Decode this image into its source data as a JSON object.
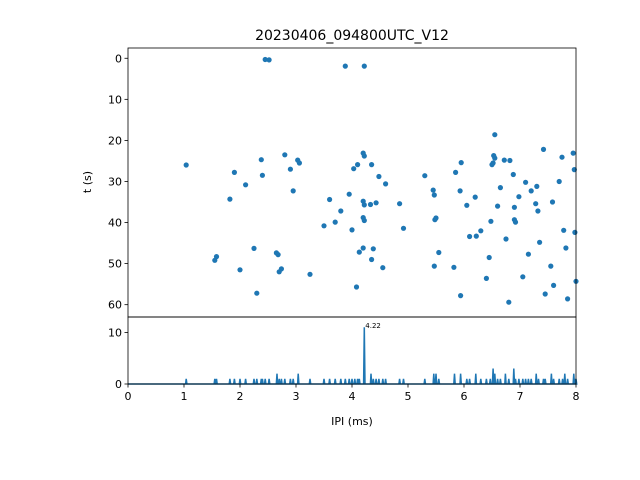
{
  "chart_data": [
    {
      "type": "scatter",
      "title": "20230406_094800UTC_V12",
      "ylabel": "t (s)",
      "xlim": [
        0,
        8
      ],
      "ylim": [
        63,
        -2.5
      ],
      "y_inverted": true,
      "grid": false,
      "marker_color": "#1f77b4",
      "yticks": [
        "0",
        "10",
        "20",
        "30",
        "40",
        "50",
        "60"
      ],
      "points": [
        [
          2.45,
          0.3
        ],
        [
          2.52,
          0.4
        ],
        [
          3.88,
          1.9
        ],
        [
          4.22,
          1.9
        ],
        [
          1.04,
          26.0
        ],
        [
          1.58,
          48.3
        ],
        [
          1.55,
          49.2
        ],
        [
          1.82,
          34.3
        ],
        [
          1.9,
          27.8
        ],
        [
          2.0,
          51.5
        ],
        [
          2.1,
          30.8
        ],
        [
          2.25,
          46.3
        ],
        [
          2.3,
          57.2
        ],
        [
          2.38,
          24.7
        ],
        [
          2.4,
          28.5
        ],
        [
          2.65,
          47.4
        ],
        [
          2.68,
          47.8
        ],
        [
          2.7,
          52.0
        ],
        [
          2.74,
          51.3
        ],
        [
          2.8,
          23.5
        ],
        [
          2.9,
          27.0
        ],
        [
          2.95,
          32.3
        ],
        [
          3.03,
          24.8
        ],
        [
          3.06,
          25.5
        ],
        [
          3.25,
          52.6
        ],
        [
          3.5,
          40.8
        ],
        [
          3.6,
          34.4
        ],
        [
          3.7,
          39.9
        ],
        [
          3.8,
          37.2
        ],
        [
          3.95,
          33.1
        ],
        [
          4.0,
          41.8
        ],
        [
          4.03,
          26.9
        ],
        [
          4.1,
          25.9
        ],
        [
          4.13,
          47.2
        ],
        [
          4.08,
          55.7
        ],
        [
          4.2,
          23.1
        ],
        [
          4.22,
          23.8
        ],
        [
          4.2,
          34.8
        ],
        [
          4.22,
          35.7
        ],
        [
          4.2,
          38.8
        ],
        [
          4.22,
          39.5
        ],
        [
          4.2,
          46.2
        ],
        [
          4.35,
          25.9
        ],
        [
          4.33,
          35.6
        ],
        [
          4.35,
          49.0
        ],
        [
          4.38,
          46.4
        ],
        [
          4.43,
          35.2
        ],
        [
          4.48,
          28.8
        ],
        [
          4.55,
          51.0
        ],
        [
          4.6,
          30.6
        ],
        [
          4.85,
          35.4
        ],
        [
          4.92,
          41.4
        ],
        [
          5.3,
          28.6
        ],
        [
          5.45,
          32.1
        ],
        [
          5.47,
          33.3
        ],
        [
          5.5,
          38.9
        ],
        [
          5.48,
          39.3
        ],
        [
          5.47,
          50.6
        ],
        [
          5.55,
          47.3
        ],
        [
          5.82,
          50.9
        ],
        [
          5.85,
          27.8
        ],
        [
          5.95,
          25.4
        ],
        [
          5.93,
          32.3
        ],
        [
          5.94,
          57.8
        ],
        [
          6.05,
          35.8
        ],
        [
          6.1,
          43.4
        ],
        [
          6.2,
          33.8
        ],
        [
          6.22,
          43.3
        ],
        [
          6.3,
          42.0
        ],
        [
          6.4,
          53.6
        ],
        [
          6.45,
          48.5
        ],
        [
          6.48,
          39.7
        ],
        [
          6.5,
          25.9
        ],
        [
          6.52,
          25.5
        ],
        [
          6.55,
          18.6
        ],
        [
          6.53,
          23.7
        ],
        [
          6.55,
          24.3
        ],
        [
          6.6,
          36.0
        ],
        [
          6.65,
          31.5
        ],
        [
          6.72,
          24.8
        ],
        [
          6.75,
          44.0
        ],
        [
          6.8,
          59.4
        ],
        [
          6.82,
          24.9
        ],
        [
          6.88,
          28.3
        ],
        [
          6.9,
          36.3
        ],
        [
          6.9,
          39.3
        ],
        [
          6.92,
          39.9
        ],
        [
          6.98,
          33.7
        ],
        [
          7.05,
          53.2
        ],
        [
          7.1,
          30.2
        ],
        [
          7.15,
          47.7
        ],
        [
          7.2,
          32.3
        ],
        [
          7.28,
          35.4
        ],
        [
          7.3,
          31.2
        ],
        [
          7.32,
          37.2
        ],
        [
          7.35,
          44.8
        ],
        [
          7.45,
          57.4
        ],
        [
          7.42,
          22.2
        ],
        [
          7.55,
          50.6
        ],
        [
          7.6,
          55.3
        ],
        [
          7.58,
          35.0
        ],
        [
          7.7,
          30.0
        ],
        [
          7.75,
          24.1
        ],
        [
          7.78,
          41.9
        ],
        [
          7.82,
          46.2
        ],
        [
          7.85,
          58.6
        ],
        [
          7.95,
          23.1
        ],
        [
          7.97,
          27.1
        ],
        [
          7.98,
          42.4
        ],
        [
          8.0,
          54.3
        ]
      ]
    },
    {
      "type": "line",
      "xlabel": "IPI (ms)",
      "xlim": [
        0,
        8
      ],
      "ylim": [
        0,
        13
      ],
      "grid": false,
      "line_color": "#1f77b4",
      "xticks": [
        "0",
        "1",
        "2",
        "3",
        "4",
        "5",
        "6",
        "7",
        "8"
      ],
      "yticks": [
        "0",
        "10"
      ],
      "annotation": "4.22",
      "peak": [
        4.22,
        11.0
      ],
      "spikes": [
        [
          1.04,
          1
        ],
        [
          1.55,
          1
        ],
        [
          1.58,
          1
        ],
        [
          1.82,
          1
        ],
        [
          1.9,
          1
        ],
        [
          2.0,
          1
        ],
        [
          2.1,
          1
        ],
        [
          2.25,
          1
        ],
        [
          2.3,
          1
        ],
        [
          2.38,
          1
        ],
        [
          2.4,
          1
        ],
        [
          2.45,
          1
        ],
        [
          2.52,
          1
        ],
        [
          2.66,
          2
        ],
        [
          2.7,
          1
        ],
        [
          2.74,
          1
        ],
        [
          2.8,
          1
        ],
        [
          2.9,
          1
        ],
        [
          2.95,
          1
        ],
        [
          3.04,
          2
        ],
        [
          3.25,
          1
        ],
        [
          3.5,
          1
        ],
        [
          3.6,
          1
        ],
        [
          3.7,
          1
        ],
        [
          3.8,
          1
        ],
        [
          3.88,
          1
        ],
        [
          3.95,
          1
        ],
        [
          4.0,
          1
        ],
        [
          4.05,
          1
        ],
        [
          4.1,
          1
        ],
        [
          4.13,
          1
        ],
        [
          4.22,
          11
        ],
        [
          4.34,
          2
        ],
        [
          4.38,
          1
        ],
        [
          4.43,
          1
        ],
        [
          4.48,
          1
        ],
        [
          4.55,
          1
        ],
        [
          4.6,
          1
        ],
        [
          4.85,
          1
        ],
        [
          4.92,
          1
        ],
        [
          5.3,
          1
        ],
        [
          5.46,
          2
        ],
        [
          5.5,
          2
        ],
        [
          5.55,
          1
        ],
        [
          5.83,
          2
        ],
        [
          5.94,
          2
        ],
        [
          6.05,
          1
        ],
        [
          6.1,
          1
        ],
        [
          6.21,
          2
        ],
        [
          6.3,
          1
        ],
        [
          6.4,
          1
        ],
        [
          6.47,
          1
        ],
        [
          6.52,
          3
        ],
        [
          6.55,
          2
        ],
        [
          6.6,
          1
        ],
        [
          6.65,
          1
        ],
        [
          6.74,
          2
        ],
        [
          6.8,
          1
        ],
        [
          6.89,
          3
        ],
        [
          6.92,
          1
        ],
        [
          6.98,
          1
        ],
        [
          7.05,
          1
        ],
        [
          7.1,
          1
        ],
        [
          7.15,
          1
        ],
        [
          7.2,
          1
        ],
        [
          7.29,
          2
        ],
        [
          7.33,
          1
        ],
        [
          7.42,
          1
        ],
        [
          7.45,
          1
        ],
        [
          7.56,
          2
        ],
        [
          7.6,
          1
        ],
        [
          7.7,
          1
        ],
        [
          7.76,
          1
        ],
        [
          7.8,
          2
        ],
        [
          7.85,
          1
        ],
        [
          7.96,
          2
        ],
        [
          7.98,
          1
        ],
        [
          8.0,
          1
        ]
      ]
    }
  ]
}
